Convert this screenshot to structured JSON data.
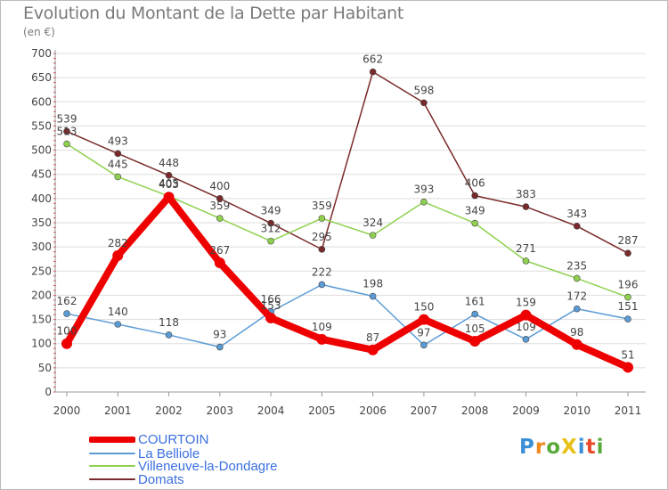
{
  "title": "Evolution du Montant de la Dette par Habitant",
  "subtitle": "(en €)",
  "logo_text": "ProXiti",
  "colors": {
    "COURTOIN": "#ee0000",
    "La Belliole": "#5b9bd5",
    "Villeneuve-la-Dondagre": "#8fd14f",
    "Domats": "#7a2a2a",
    "grid": "#dddddd",
    "axis_text": "#444444"
  },
  "chart_data": {
    "type": "line",
    "title": "Evolution du Montant de la Dette par Habitant",
    "subtitle": "(en €)",
    "x": [
      "2000",
      "2001",
      "2002",
      "2003",
      "2004",
      "2005",
      "2006",
      "2007",
      "2008",
      "2009",
      "2010",
      "2011"
    ],
    "ylim": [
      0,
      700
    ],
    "yticks": [
      0,
      50,
      100,
      150,
      200,
      250,
      300,
      350,
      400,
      450,
      500,
      550,
      600,
      650,
      700
    ],
    "grid": "horizontal",
    "legend_position": "bottom-left",
    "series": [
      {
        "name": "COURTOIN",
        "values": [
          100,
          282,
          403,
          267,
          153,
          109,
          87,
          150,
          105,
          159,
          98,
          51
        ]
      },
      {
        "name": "La Belliole",
        "values": [
          162,
          140,
          118,
          93,
          166,
          222,
          198,
          97,
          161,
          109,
          172,
          151
        ]
      },
      {
        "name": "Villeneuve-la-Dondagre",
        "values": [
          513,
          445,
          405,
          359,
          312,
          359,
          324,
          393,
          349,
          271,
          235,
          196
        ]
      },
      {
        "name": "Domats",
        "values": [
          539,
          493,
          448,
          400,
          349,
          295,
          662,
          598,
          406,
          383,
          343,
          287
        ]
      }
    ]
  }
}
